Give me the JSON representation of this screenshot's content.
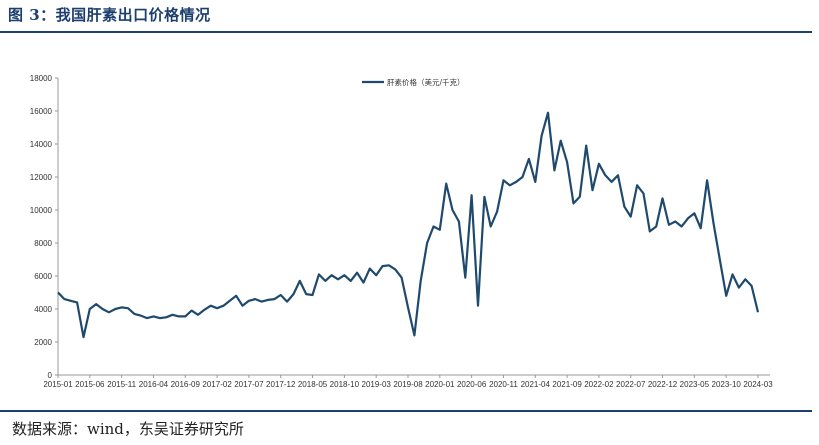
{
  "header": {
    "figure_title": "图 3：我国肝素出口价格情况"
  },
  "footer": {
    "source": "数据来源：wind，东吴证券研究所"
  },
  "chart_data": {
    "type": "line",
    "title": "",
    "xlabel": "",
    "ylabel": "",
    "ylim": [
      0,
      18000
    ],
    "yticks": [
      0,
      2000,
      4000,
      6000,
      8000,
      10000,
      12000,
      14000,
      16000,
      18000
    ],
    "xticks": [
      "2015-01",
      "2015-06",
      "2015-11",
      "2016-04",
      "2016-09",
      "2017-02",
      "2017-07",
      "2017-12",
      "2018-05",
      "2018-10",
      "2019-03",
      "2019-08",
      "2020-01",
      "2020-06",
      "2020-11",
      "2021-04",
      "2021-09",
      "2022-02",
      "2022-07",
      "2022-12",
      "2023-05",
      "2023-10",
      "2024-03"
    ],
    "legend": {
      "position": "top-center"
    },
    "color": "#1f4a6e",
    "series": [
      {
        "name": "肝素价格（美元/千克）",
        "start": "2015-01",
        "values": [
          5000,
          4600,
          4500,
          4400,
          2300,
          4000,
          4300,
          4000,
          3800,
          4000,
          4100,
          4050,
          3700,
          3600,
          3450,
          3550,
          3450,
          3500,
          3650,
          3550,
          3550,
          3900,
          3650,
          3950,
          4200,
          4050,
          4200,
          4500,
          4800,
          4200,
          4500,
          4600,
          4450,
          4550,
          4600,
          4850,
          4450,
          4900,
          5700,
          4900,
          4850,
          6100,
          5700,
          6050,
          5800,
          6050,
          5700,
          6200,
          5600,
          6450,
          6050,
          6600,
          6650,
          6400,
          5900,
          4100,
          2400,
          5700,
          8000,
          9000,
          8800,
          11600,
          10000,
          9300,
          5900,
          10900,
          4200,
          10800,
          9000,
          9900,
          11800,
          11500,
          11700,
          12000,
          13100,
          11700,
          14500,
          15900,
          12400,
          14200,
          12900,
          10400,
          10800,
          13900,
          11200,
          12800,
          12100,
          11700,
          12100,
          10200,
          9600,
          11500,
          11000,
          8700,
          9000,
          10700,
          9100,
          9300,
          9000,
          9500,
          9800,
          8900,
          11800,
          9200,
          7000,
          4800,
          6100,
          5300,
          5800,
          5400,
          3800
        ]
      }
    ]
  }
}
